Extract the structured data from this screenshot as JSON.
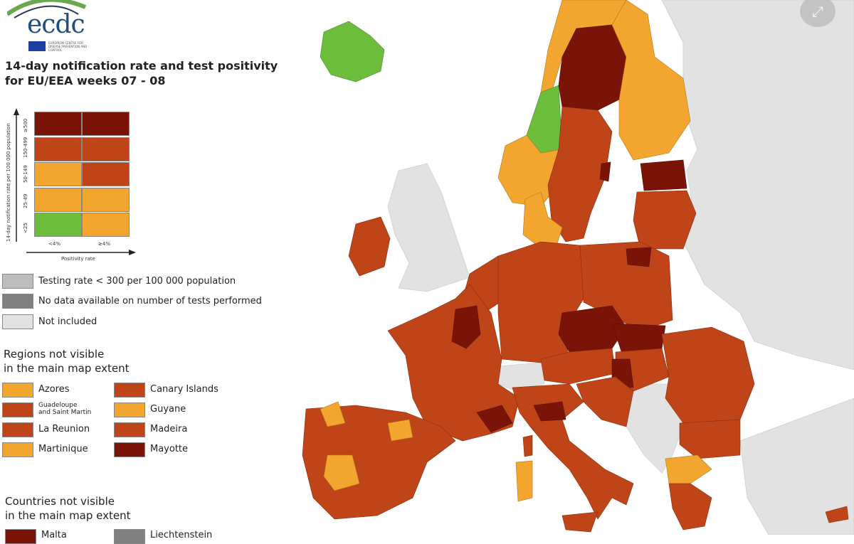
{
  "logo": {
    "text": "ecdc",
    "subtext": "EUROPEAN CENTRE FOR DISEASE PREVENTION AND CONTROL"
  },
  "title": {
    "line1": "14-day notification rate and test positivity",
    "line2": "for EU/EEA weeks 07 - 08"
  },
  "matrix": {
    "y_axis_label": "14-day notification rate per 100 000 population",
    "x_axis_label": "Positivity rate",
    "rows": [
      "≥500",
      "150-499",
      "50-149",
      "25-49",
      "<25"
    ],
    "columns": [
      "<4%",
      "≥4%"
    ],
    "colors": [
      [
        "#7a1409",
        "#7a1409"
      ],
      [
        "#bf4418",
        "#bf4418"
      ],
      [
        "#f2a630",
        "#bf4418"
      ],
      [
        "#f2a630",
        "#f2a630"
      ],
      [
        "#6cbd3c",
        "#f2a630"
      ]
    ]
  },
  "legend": [
    {
      "label": "Testing rate < 300 per 100 000 population",
      "color": "#bdbdbd"
    },
    {
      "label": "No data available on number of tests performed",
      "color": "#808080"
    },
    {
      "label": "Not included",
      "color": "#e2e2e2"
    }
  ],
  "regions": {
    "heading1": "Regions not visible",
    "heading2": "in the main map extent",
    "items": [
      {
        "label": "Azores",
        "color": "#f2a630"
      },
      {
        "label": "Canary Islands",
        "color": "#bf4418"
      },
      {
        "label": "Guadeloupe",
        "label2": "and Saint Martin",
        "color": "#bf4418"
      },
      {
        "label": "Guyane",
        "color": "#f2a630"
      },
      {
        "label": "La Reunion",
        "color": "#bf4418"
      },
      {
        "label": "Madeira",
        "color": "#bf4418"
      },
      {
        "label": "Martinique",
        "color": "#f2a630"
      },
      {
        "label": "Mayotte",
        "color": "#7a1409"
      }
    ]
  },
  "countries": {
    "heading1": "Countries not visible",
    "heading2": "in the main map extent",
    "items": [
      {
        "label": "Malta",
        "color": "#7a1409"
      },
      {
        "label": "Liechtenstein",
        "color": "#808080"
      }
    ]
  },
  "controls": {
    "expand_icon": "expand-arrows-icon",
    "expand_glyph": "⤢"
  }
}
